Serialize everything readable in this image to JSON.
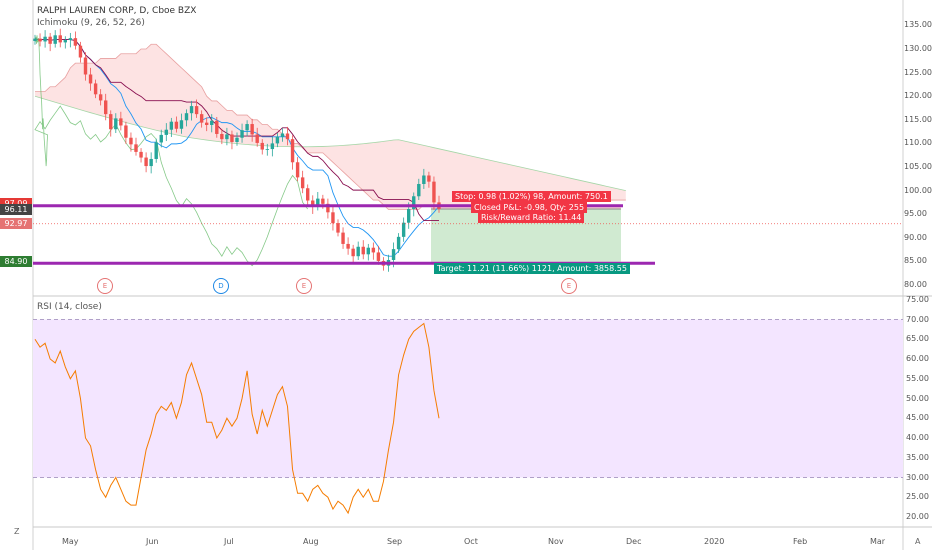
{
  "header": {
    "symbol_title": "RALPH LAUREN CORP, D, Cboe BZX",
    "indicator_main": "Ichimoku (9, 26, 52, 26)",
    "indicator_sub": "RSI (14, close)"
  },
  "price_axis": {
    "ticks": [
      "135.00",
      "130.00",
      "125.00",
      "120.00",
      "115.00",
      "110.00",
      "105.00",
      "100.00",
      "95.00",
      "90.00",
      "85.00",
      "80.00"
    ]
  },
  "price_tags": [
    {
      "label": "97.09",
      "color": "#e53935"
    },
    {
      "label": "96.11",
      "color": "#444444"
    },
    {
      "label": "92.97",
      "color": "#e57373"
    },
    {
      "label": "84.90",
      "color": "#2e7d32"
    }
  ],
  "rsi_axis": {
    "ticks": [
      "75.00",
      "70.00",
      "65.00",
      "60.00",
      "55.00",
      "50.00",
      "45.00",
      "40.00",
      "35.00",
      "30.00",
      "25.00",
      "20.00"
    ]
  },
  "time_axis": {
    "months": [
      "May",
      "Jun",
      "Jul",
      "Aug",
      "Sep",
      "Oct",
      "Nov",
      "Dec",
      "2020",
      "Feb",
      "Mar"
    ]
  },
  "events": [
    {
      "label": "E",
      "color": "#e57373"
    },
    {
      "label": "D",
      "color": "#1e88e5"
    },
    {
      "label": "E",
      "color": "#e57373"
    },
    {
      "label": "E",
      "color": "#e57373"
    }
  ],
  "position": {
    "stop_text": "Stop: 0.98 (1.02%) 98, Amount: 750.1",
    "closed_text": "Closed P&L: -0.98, Qty: 255",
    "risk_text": "Risk/Reward Ratio: 11.44",
    "target_text": "Target: 11.21 (11.66%) 1121, Amount: 3858.55"
  },
  "corners": {
    "left": "Z",
    "right": "A"
  },
  "colors": {
    "bull": "#26a69a",
    "bear": "#ef5350",
    "purple_line": "#9c27b0",
    "rsi_line": "#f57c00",
    "rsi_band": "#f3e5ff",
    "target_zone": "#c8e6c9",
    "stop_zone": "#ffcdd2"
  },
  "chart_data": {
    "type": "candlestick",
    "price_range": [
      78,
      137
    ],
    "rsi_range": [
      17,
      76
    ],
    "closes": [
      132.2,
      131.6,
      132.6,
      131.1,
      132.9,
      131.4,
      131.9,
      132.3,
      130.7,
      128.2,
      124.6,
      122.7,
      120.4,
      119.1,
      116.2,
      113.0,
      115.3,
      113.8,
      111.2,
      109.8,
      108.2,
      107.0,
      105.2,
      106.7,
      110.2,
      111.8,
      112.9,
      114.6,
      113.1,
      114.9,
      116.4,
      117.9,
      116.2,
      114.4,
      113.9,
      114.8,
      112.0,
      110.9,
      111.9,
      110.3,
      111.2,
      112.8,
      114.1,
      111.9,
      110.1,
      108.7,
      108.8,
      110.0,
      111.4,
      112.1,
      110.9,
      106.0,
      102.8,
      100.5,
      97.9,
      96.6,
      98.3,
      97.2,
      95.4,
      93.1,
      91.1,
      88.7,
      87.7,
      86.1,
      88.1,
      86.5,
      87.9,
      86.9,
      85.1,
      84.1,
      85.3,
      87.6,
      90.2,
      93.2,
      96.1,
      98.8,
      101.4,
      103.2,
      101.9,
      97.5,
      96.1
    ],
    "rsi": [
      65,
      63,
      64,
      60,
      59,
      62,
      58,
      55,
      57,
      50,
      40,
      38,
      32,
      27,
      25,
      28,
      30,
      27,
      24,
      23,
      23,
      30,
      37,
      41,
      46,
      48,
      47,
      49,
      45,
      49,
      56,
      59,
      55,
      51,
      44,
      44,
      40,
      42,
      45,
      43,
      45,
      50,
      57,
      46,
      41,
      47,
      43,
      47,
      51,
      53,
      48,
      32,
      26,
      26,
      24,
      27,
      28,
      26,
      25,
      22,
      24,
      23,
      21,
      25,
      27,
      25,
      27,
      24,
      24,
      29,
      37,
      44,
      56,
      61,
      65,
      67,
      68,
      69,
      63,
      52,
      45
    ]
  }
}
